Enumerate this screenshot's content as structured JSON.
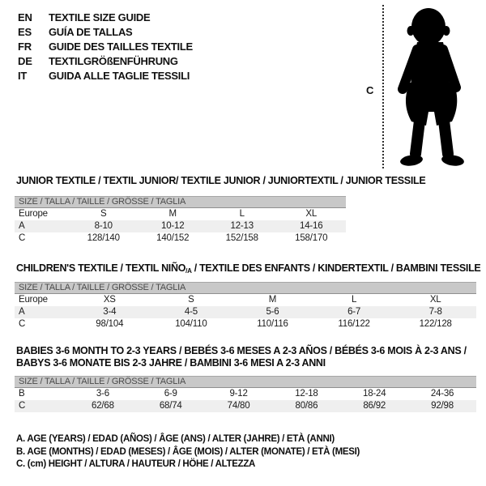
{
  "colors": {
    "background": "#ffffff",
    "size_bar_bg": "#c8c8c8",
    "alt_row_bg": "#efefef",
    "silhouette": "#000000",
    "text": "#1a1a1a"
  },
  "languages": [
    {
      "code": "EN",
      "title": "TEXTILE SIZE GUIDE"
    },
    {
      "code": "ES",
      "title": "GUÍA DE TALLAS"
    },
    {
      "code": "FR",
      "title": "GUIDE DES TAILLES TEXTILE"
    },
    {
      "code": "DE",
      "title": "TEXTILGRÖßENFÜHRUNG"
    },
    {
      "code": "IT",
      "title": "GUIDA ALLE TAGLIE TESSILI"
    }
  ],
  "figure": {
    "label": "C",
    "icon": "baby-silhouette"
  },
  "sections": [
    {
      "title": "JUNIOR TEXTILE / TEXTIL JUNIOR/ TEXTILE JUNIOR / JUNIORTEXTIL / JUNIOR TESSILE",
      "size_header": "SIZE / TALLA / TAILLE / GRÖSSE / TAGLIA",
      "rows": [
        {
          "label": "Europe",
          "values": [
            "S",
            "M",
            "L",
            "XL"
          ]
        },
        {
          "label": "A",
          "values": [
            "8-10",
            "10-12",
            "12-13",
            "14-16"
          ]
        },
        {
          "label": "C",
          "values": [
            "128/140",
            "140/152",
            "152/158",
            "158/170"
          ]
        }
      ]
    },
    {
      "title_parts": {
        "pre": "CHILDREN'S TEXTILE / TEXTIL NIÑO",
        "sub": "/A",
        "post": " / TEXTILE DES ENFANTS / KINDERTEXTIL / BAMBINI TESSILE"
      },
      "size_header": "SIZE / TALLA / TAILLE / GRÖSSE / TAGLIA",
      "rows": [
        {
          "label": "Europe",
          "values": [
            "XS",
            "S",
            "M",
            "L",
            "XL"
          ]
        },
        {
          "label": "A",
          "values": [
            "3-4",
            "4-5",
            "5-6",
            "6-7",
            "7-8"
          ]
        },
        {
          "label": "C",
          "values": [
            "98/104",
            "104/110",
            "110/116",
            "116/122",
            "122/128"
          ]
        }
      ]
    },
    {
      "title_lines": [
        "BABIES 3-6 MONTH TO 2-3 YEARS / BEBÉS 3-6 MESES A 2-3 AÑOS / BÉBÉS 3-6 MOIS À 2-3 ANS /",
        "BABYS 3-6 MONATE BIS 2-3 JAHRE / BAMBINI 3-6 MESI A 2-3 ANNI"
      ],
      "size_header": "SIZE / TALLA / TAILLE / GRÖSSE / TAGLIA",
      "rows": [
        {
          "label": "B",
          "values": [
            "3-6",
            "6-9",
            "9-12",
            "12-18",
            "18-24",
            "24-36"
          ]
        },
        {
          "label": "C",
          "values": [
            "62/68",
            "68/74",
            "74/80",
            "80/86",
            "86/92",
            "92/98"
          ]
        }
      ]
    }
  ],
  "footnotes": [
    "A. AGE (YEARS) / EDAD (AÑOS) / ÂGE (ANS) / ALTER (JAHRE) / ETÀ (ANNI)",
    "B. AGE (MONTHS) / EDAD (MESES) / ÂGE (MOIS) / ALTER (MONATE) / ETÀ (MESI)",
    "C. (cm) HEIGHT / ALTURA / HAUTEUR / HÖHE / ALTEZZA"
  ]
}
